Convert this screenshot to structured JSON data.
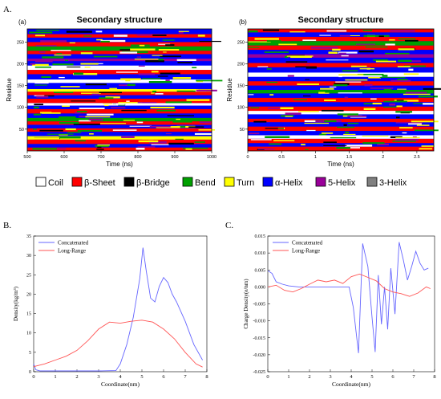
{
  "panel_labels": {
    "A": "A.",
    "B": "B.",
    "C": "C."
  },
  "legend_ss": [
    {
      "label": "Coil",
      "color": "#ffffff"
    },
    {
      "label": "β-Sheet",
      "color": "#ff0000"
    },
    {
      "label": "β-Bridge",
      "color": "#000000"
    },
    {
      "label": "Bend",
      "color": "#00a000"
    },
    {
      "label": "Turn",
      "color": "#ffff00"
    },
    {
      "label": "α-Helix",
      "color": "#0000ff"
    },
    {
      "label": "5-Helix",
      "color": "#990099"
    },
    {
      "label": "3-Helix",
      "color": "#808080"
    }
  ],
  "chart_data": [
    {
      "id": "a",
      "type": "heatmap",
      "sublabel": "(a)",
      "title": "Secondary structure",
      "xlabel": "Time (ns)",
      "ylabel": "Residue",
      "xlim": [
        500,
        1000
      ],
      "ylim": [
        0,
        280
      ],
      "xticks": [
        500,
        600,
        700,
        800,
        900,
        1000
      ],
      "xtick_labels": [
        "500",
        "600",
        "700",
        "800",
        "900",
        "1000"
      ],
      "yticks": [
        50,
        100,
        150,
        200,
        250
      ],
      "ytick_labels": [
        "50",
        "100",
        "150",
        "200",
        "250"
      ],
      "residue_bands": [
        [
          0,
          8,
          "#ff0000"
        ],
        [
          8,
          16,
          "#0000ff"
        ],
        [
          16,
          26,
          "#ff0000"
        ],
        [
          26,
          34,
          "#ffff00"
        ],
        [
          34,
          44,
          "#0000ff"
        ],
        [
          44,
          52,
          "#ff0000"
        ],
        [
          52,
          60,
          "#0000ff"
        ],
        [
          60,
          68,
          "#ff0000"
        ],
        [
          68,
          76,
          "#00a000"
        ],
        [
          76,
          86,
          "#0000ff"
        ],
        [
          86,
          96,
          "#ff0000"
        ],
        [
          96,
          104,
          "#0000ff"
        ],
        [
          104,
          110,
          "#ffffff"
        ],
        [
          110,
          120,
          "#ff0000"
        ],
        [
          120,
          128,
          "#0000ff"
        ],
        [
          128,
          136,
          "#ff0000"
        ],
        [
          136,
          142,
          "#ffff00"
        ],
        [
          142,
          156,
          "#0000ff"
        ],
        [
          156,
          164,
          "#ffffff"
        ],
        [
          164,
          176,
          "#0000ff"
        ],
        [
          176,
          186,
          "#ff0000"
        ],
        [
          186,
          196,
          "#ffffff"
        ],
        [
          196,
          206,
          "#0000ff"
        ],
        [
          206,
          212,
          "#990099"
        ],
        [
          212,
          222,
          "#0000ff"
        ],
        [
          222,
          230,
          "#ff0000"
        ],
        [
          230,
          240,
          "#00a000"
        ],
        [
          240,
          250,
          "#ff0000"
        ],
        [
          250,
          260,
          "#0000ff"
        ],
        [
          260,
          268,
          "#ff0000"
        ],
        [
          268,
          280,
          "#0000ff"
        ]
      ]
    },
    {
      "id": "b",
      "type": "heatmap",
      "sublabel": "(b)",
      "title": "Secondary structure",
      "xlabel": "Time (ns)",
      "ylabel": "Residue",
      "xlim": [
        0,
        2.75
      ],
      "ylim": [
        0,
        280
      ],
      "xticks": [
        0,
        0.5,
        1,
        1.5,
        2,
        2.5
      ],
      "xtick_labels": [
        "0",
        "0.5",
        "1",
        "1.5",
        "2",
        "2.5"
      ],
      "yticks": [
        50,
        100,
        150,
        200,
        250
      ],
      "ytick_labels": [
        "50",
        "100",
        "150",
        "200",
        "250"
      ],
      "residue_bands": [
        [
          0,
          10,
          "#ff0000"
        ],
        [
          10,
          18,
          "#0000ff"
        ],
        [
          18,
          28,
          "#ff0000"
        ],
        [
          28,
          36,
          "#ffffff"
        ],
        [
          36,
          46,
          "#0000ff"
        ],
        [
          46,
          56,
          "#ff0000"
        ],
        [
          56,
          66,
          "#0000ff"
        ],
        [
          66,
          74,
          "#ff0000"
        ],
        [
          74,
          84,
          "#0000ff"
        ],
        [
          84,
          92,
          "#ffffff"
        ],
        [
          92,
          102,
          "#ff0000"
        ],
        [
          102,
          112,
          "#0000ff"
        ],
        [
          112,
          122,
          "#ff0000"
        ],
        [
          122,
          132,
          "#0000ff"
        ],
        [
          132,
          140,
          "#00a000"
        ],
        [
          140,
          150,
          "#0000ff"
        ],
        [
          150,
          160,
          "#ff0000"
        ],
        [
          160,
          170,
          "#0000ff"
        ],
        [
          170,
          180,
          "#ffffff"
        ],
        [
          180,
          192,
          "#0000ff"
        ],
        [
          192,
          202,
          "#ff0000"
        ],
        [
          202,
          214,
          "#0000ff"
        ],
        [
          214,
          222,
          "#990099"
        ],
        [
          222,
          232,
          "#0000ff"
        ],
        [
          232,
          242,
          "#ff0000"
        ],
        [
          242,
          252,
          "#00a000"
        ],
        [
          252,
          262,
          "#ff0000"
        ],
        [
          262,
          272,
          "#0000ff"
        ],
        [
          272,
          280,
          "#ff0000"
        ]
      ]
    },
    {
      "id": "B",
      "type": "line",
      "xlabel": "Coordinate(nm)",
      "ylabel": "Density(kg/m³)",
      "xlim": [
        0,
        8
      ],
      "ylim": [
        0,
        35
      ],
      "xticks": [
        0,
        1,
        2,
        3,
        4,
        5,
        6,
        7,
        8
      ],
      "yticks": [
        0,
        5,
        10,
        15,
        20,
        25,
        30,
        35
      ],
      "legend_position": "top-left",
      "series": [
        {
          "name": "Concatenated",
          "color": "#6666ff",
          "x": [
            0,
            0.1,
            0.3,
            0.5,
            1,
            2,
            3,
            3.8,
            4.0,
            4.3,
            4.6,
            4.9,
            5.05,
            5.2,
            5.4,
            5.6,
            5.8,
            6.0,
            6.2,
            6.4,
            6.6,
            7.0,
            7.4,
            7.8
          ],
          "y": [
            2,
            0.5,
            0.2,
            0.2,
            0.2,
            0.2,
            0.2,
            0.3,
            2,
            7,
            14,
            24,
            32,
            26,
            19,
            18,
            22,
            24.3,
            23,
            20,
            18,
            13,
            7,
            3
          ]
        },
        {
          "name": "Long-Range",
          "color": "#ff5555",
          "x": [
            0,
            0.5,
            1,
            1.5,
            2,
            2.5,
            3,
            3.5,
            4,
            4.5,
            5,
            5.5,
            6,
            6.5,
            7,
            7.5,
            7.8
          ],
          "y": [
            1.3,
            2,
            3,
            4,
            5.5,
            8,
            11,
            12.8,
            12.5,
            13,
            13.3,
            12.8,
            11,
            8.5,
            5,
            2,
            1.2
          ]
        }
      ]
    },
    {
      "id": "C",
      "type": "line",
      "xlabel": "Coordinate(nm)",
      "ylabel": "Charge Density(e/nm)",
      "xlim": [
        0,
        8
      ],
      "ylim": [
        -0.025,
        0.015
      ],
      "xticks": [
        0,
        1,
        2,
        3,
        4,
        5,
        6,
        7,
        8
      ],
      "yticks": [
        -0.025,
        -0.02,
        -0.015,
        -0.01,
        -0.005,
        0,
        0.005,
        0.01,
        0.015
      ],
      "ytick_labels": [
        "-0.025",
        "-0.020",
        "-0.015",
        "-0.010",
        "-0.005",
        "0.000",
        "0.005",
        "0.010",
        "0.015"
      ],
      "legend_position": "top-left",
      "series": [
        {
          "name": "Concatenated",
          "color": "#6666ff",
          "x": [
            0,
            0.2,
            0.4,
            0.7,
            1.0,
            1.5,
            2,
            2.5,
            3,
            3.5,
            3.9,
            4.1,
            4.35,
            4.55,
            4.8,
            5.0,
            5.15,
            5.3,
            5.45,
            5.6,
            5.75,
            5.9,
            6.1,
            6.3,
            6.5,
            6.7,
            6.9,
            7.1,
            7.3,
            7.5,
            7.7
          ],
          "y": [
            0.0048,
            0.004,
            0.0015,
            0.0008,
            0.0003,
            0.0,
            0.0,
            0.0,
            0.0,
            0.0,
            0.0,
            -0.006,
            -0.0195,
            0.0128,
            0.006,
            -0.009,
            -0.0192,
            0.0035,
            -0.011,
            0.0,
            -0.0125,
            0.0055,
            -0.008,
            0.0132,
            0.008,
            0.002,
            0.006,
            0.0105,
            0.007,
            0.005,
            0.0055
          ]
        },
        {
          "name": "Long-Range",
          "color": "#ff5555",
          "x": [
            0,
            0.4,
            0.8,
            1.2,
            1.6,
            2.0,
            2.4,
            2.8,
            3.2,
            3.6,
            4.0,
            4.4,
            4.8,
            5.2,
            5.6,
            6.0,
            6.4,
            6.8,
            7.2,
            7.6,
            7.8
          ],
          "y": [
            0.0,
            0.0005,
            -0.001,
            -0.0015,
            -0.0005,
            0.0008,
            0.002,
            0.0015,
            0.002,
            0.001,
            0.003,
            0.0038,
            0.0028,
            0.0018,
            -0.0005,
            -0.0015,
            -0.002,
            -0.0028,
            -0.0018,
            0.0,
            -0.0005
          ]
        }
      ]
    }
  ]
}
